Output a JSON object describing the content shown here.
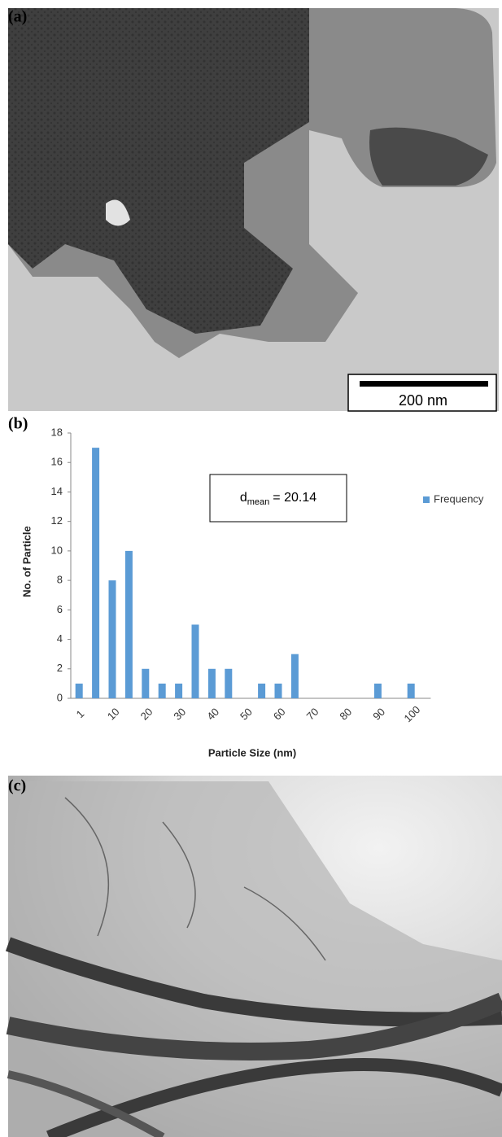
{
  "panel_labels": [
    "(a)",
    "(b)",
    "(c)"
  ],
  "scale_bar": "200 nm",
  "chart_data": {
    "type": "bar",
    "categories": [
      "1",
      null,
      "10",
      null,
      "20",
      null,
      "30",
      null,
      "40",
      null,
      "50",
      null,
      "60",
      null,
      "70",
      null,
      "80",
      null,
      "90",
      null,
      "100"
    ],
    "series": [
      {
        "name": "Frequency",
        "color": "#5b9bd5",
        "values": [
          1,
          17,
          8,
          10,
          2,
          1,
          1,
          5,
          2,
          2,
          0,
          1,
          1,
          3,
          0,
          0,
          0,
          0,
          1,
          0,
          1
        ]
      }
    ],
    "ylim": [
      0,
      18
    ],
    "yticks": [
      0,
      2,
      4,
      6,
      8,
      10,
      12,
      14,
      16,
      18
    ],
    "x_label": "Particle Size (nm)",
    "y_label": "No. of Particle",
    "annotation": {
      "symbol": "d",
      "subscript": "mean",
      "text": "= 20.14"
    },
    "legend": "right",
    "grid": false
  }
}
